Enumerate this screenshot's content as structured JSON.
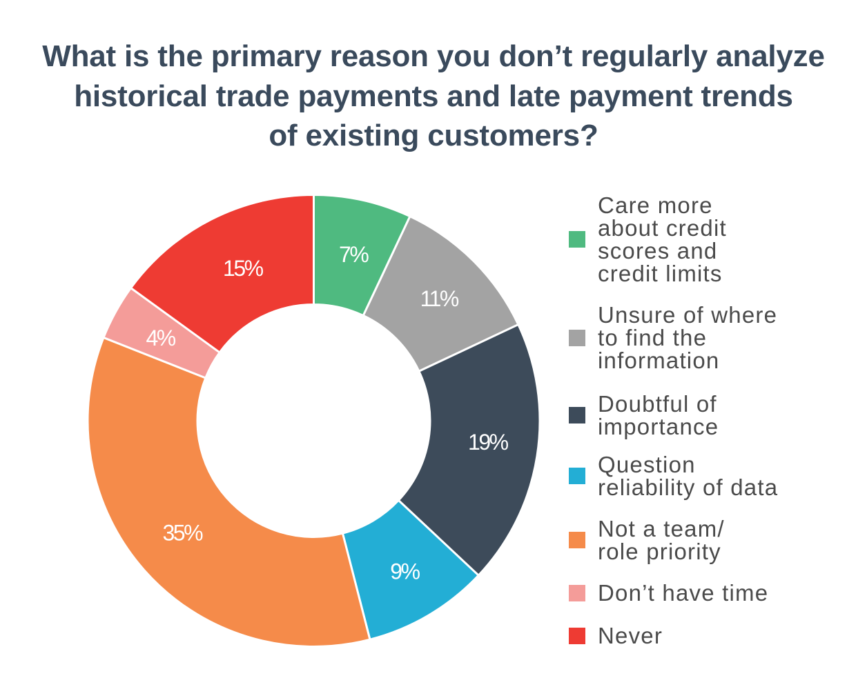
{
  "title": {
    "text": "What is the primary reason you don’t regularly analyze historical trade payments and late payment trends of existing customers?",
    "lines": [
      "What is the primary reason you don’t regularly analyze",
      "historical trade payments and late payment trends",
      "of existing customers?"
    ],
    "color": "#3a4a5c"
  },
  "chart_data": {
    "type": "pie",
    "subtype": "donut",
    "title": "What is the primary reason you don’t regularly analyze historical trade payments and late payment trends of existing customers?",
    "categories": [
      "Care more about credit scores and credit limits",
      "Unsure of where to find the information",
      "Doubtful of importance",
      "Question reliability of data",
      "Not a team/ role priority",
      "Don’t have time",
      "Never"
    ],
    "values": [
      7,
      11,
      19,
      9,
      35,
      4,
      15
    ],
    "unit": "%",
    "colors": [
      "#4fba80",
      "#a3a3a3",
      "#3d4b5a",
      "#23aed5",
      "#f58b4a",
      "#f49c99",
      "#ee3b33"
    ],
    "start_angle": "12 o'clock, clockwise",
    "legend_position": "right",
    "grid": false,
    "background": "#ffffff",
    "slices": [
      {
        "label": "Care more about credit scores and credit limits",
        "label_lines": [
          "Care more",
          "about credit",
          "scores and",
          "credit limits"
        ],
        "value_pct": 7,
        "data_label": "7%",
        "color": "#4fba80"
      },
      {
        "label": "Unsure of where to find the information",
        "label_lines": [
          "Unsure of where",
          "to find the",
          "information"
        ],
        "value_pct": 11,
        "data_label": "11%",
        "color": "#a3a3a3"
      },
      {
        "label": "Doubtful of importance",
        "label_lines": [
          "Doubtful of",
          "importance"
        ],
        "value_pct": 19,
        "data_label": "19%",
        "color": "#3d4b5a"
      },
      {
        "label": "Question reliability of data",
        "label_lines": [
          "Question",
          "reliability of data"
        ],
        "value_pct": 9,
        "data_label": "9%",
        "color": "#23aed5"
      },
      {
        "label": "Not a team/ role priority",
        "label_lines": [
          "Not a team/",
          "role priority"
        ],
        "value_pct": 35,
        "data_label": "35%",
        "color": "#f58b4a"
      },
      {
        "label": "Don’t have time",
        "label_lines": [
          "Don’t have time"
        ],
        "value_pct": 4,
        "data_label": "4%",
        "color": "#f49c99"
      },
      {
        "label": "Never",
        "label_lines": [
          "Never"
        ],
        "value_pct": 15,
        "data_label": "15%",
        "color": "#ee3b33"
      }
    ],
    "slice_label_color": "#ffffff",
    "slice_border_color": "#ffffff",
    "legend_text_color": "#4a4a4a"
  }
}
